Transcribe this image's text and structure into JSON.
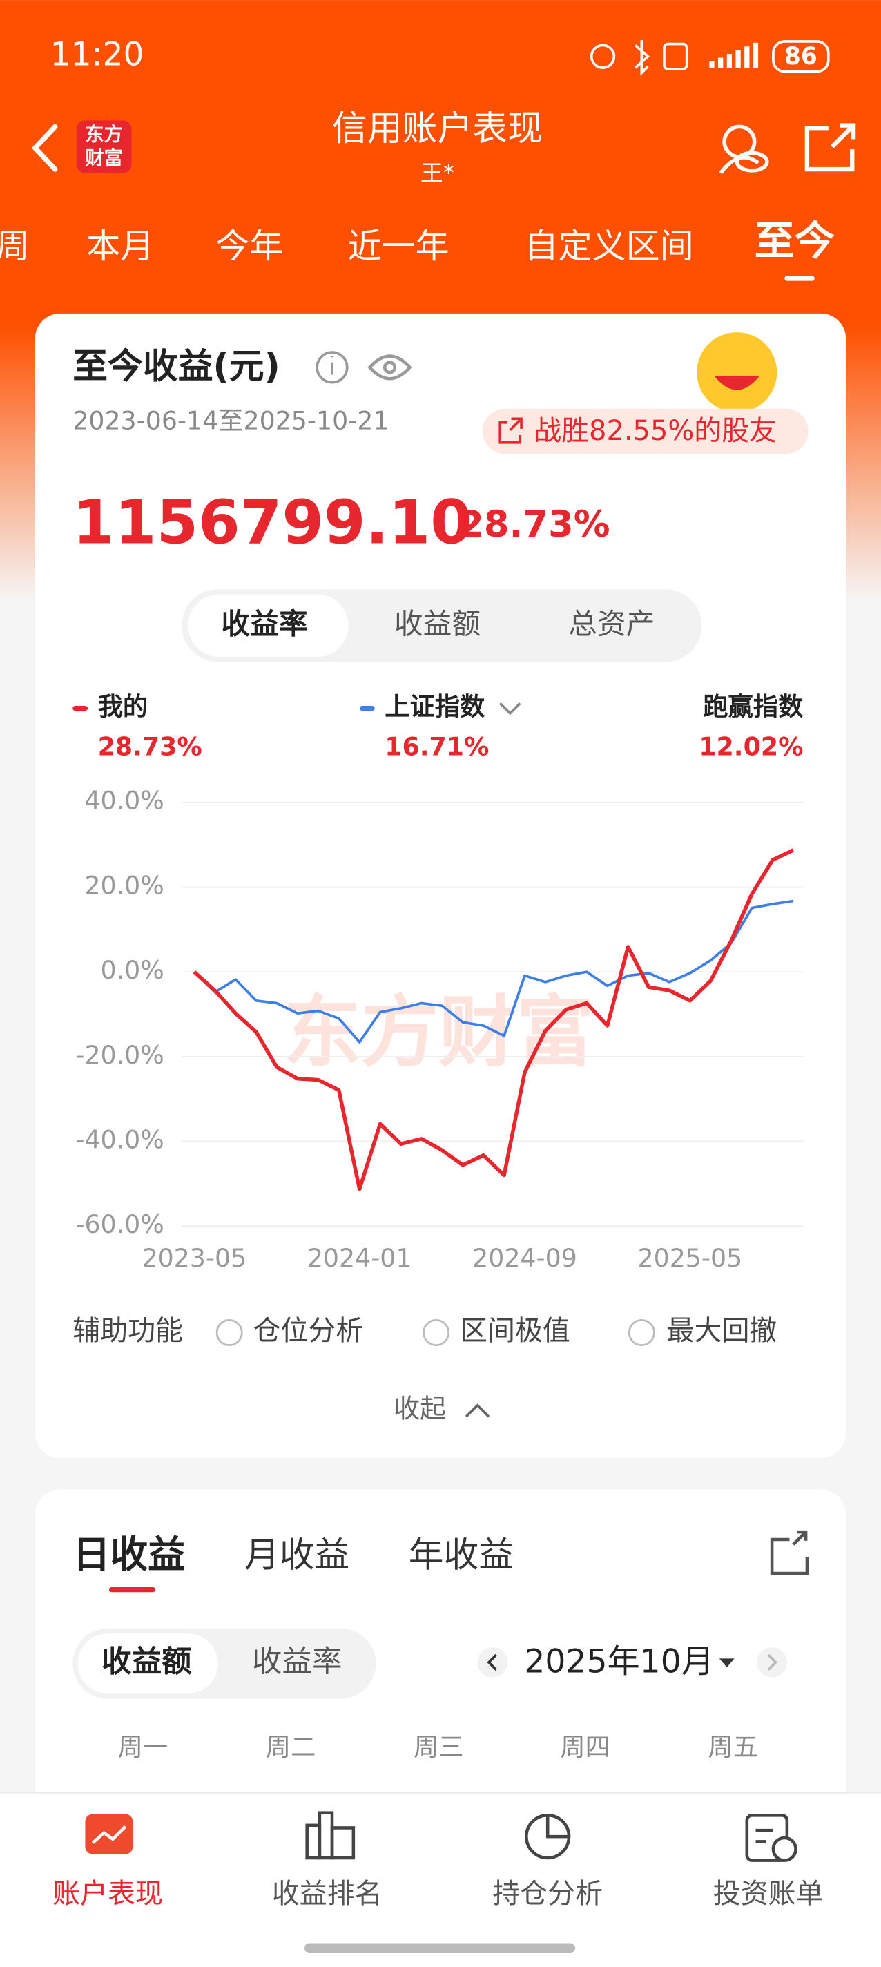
{
  "status_bar": {
    "time": "11:20",
    "battery": "86"
  },
  "header": {
    "logo": [
      "东方",
      "财富"
    ],
    "title": "信用账户表现",
    "subtitle": "王*"
  },
  "tabs": [
    "周",
    "本月",
    "今年",
    "近一年",
    "自定义区间",
    "至今"
  ],
  "summary": {
    "title": "至今收益(元)",
    "date_range": "2023-06-14至2025-10-21",
    "badge": "战胜82.55%的股友",
    "amount": "1156799.10",
    "rate": "28.73%"
  },
  "chart_modes": [
    "收益率",
    "收益额",
    "总资产"
  ],
  "chart_data": {
    "type": "line",
    "categories": [
      "2023-05",
      null,
      null,
      null,
      null,
      null,
      null,
      null,
      "2024-01",
      null,
      null,
      null,
      null,
      null,
      null,
      null,
      "2024-09",
      null,
      null,
      null,
      null,
      null,
      null,
      null,
      "2025-05",
      null,
      null,
      null,
      null,
      null
    ],
    "series": [
      {
        "name": "我的",
        "summary": "28.73%",
        "color": "#e8262d",
        "values": [
          0,
          -4.4,
          -9.8,
          -14.2,
          -22.5,
          -25.2,
          -25.5,
          -27.9,
          -51.3,
          -35.9,
          -40.6,
          -39.4,
          -42.1,
          -45.6,
          -43.3,
          -48.0,
          -23.7,
          -13.9,
          -8.9,
          -7.4,
          -12.7,
          5.9,
          -3.6,
          -4.4,
          -6.8,
          -2.1,
          7.4,
          18.4,
          26.4,
          28.73
        ]
      },
      {
        "name": "上证指数",
        "summary": "16.71%",
        "color": "#3d7ee8",
        "values": [
          0,
          -4.8,
          -1.8,
          -6.8,
          -7.4,
          -9.8,
          -9.2,
          -11.0,
          -16.6,
          -9.5,
          -8.6,
          -7.4,
          -8.0,
          -11.9,
          -12.7,
          -15.1,
          -0.9,
          -2.4,
          -0.9,
          0,
          -3.3,
          -0.9,
          -0.3,
          -2.4,
          -0.3,
          2.7,
          6.8,
          15.1,
          16.0,
          16.71
        ]
      }
    ],
    "outperform": {
      "label": "跑赢指数",
      "value": "12.02%"
    },
    "watermark": "东方财富",
    "ylim": [
      -60,
      40
    ],
    "yticks": [
      {
        "value": 40,
        "label": "40.0%"
      },
      {
        "value": 20,
        "label": "20.0%"
      },
      {
        "value": 0,
        "label": "0.0%"
      },
      {
        "value": -20,
        "label": "-20.0%"
      },
      {
        "value": -40,
        "label": "-40.0%"
      },
      {
        "value": -60,
        "label": "-60.0%"
      }
    ],
    "grid": true
  },
  "tools": {
    "label": "辅助功能",
    "options": [
      "仓位分析",
      "区间极值",
      "最大回撤"
    ],
    "collapse": "收起"
  },
  "daily": {
    "tabs": [
      "日收益",
      "月收益",
      "年收益"
    ],
    "modes": [
      "收益额",
      "收益率"
    ],
    "month": "2025年10月",
    "weekdays": [
      "周一",
      "周二",
      "周三",
      "周四",
      "周五"
    ]
  },
  "bottom_nav": [
    "账户表现",
    "收益排名",
    "持仓分析",
    "投资账单"
  ]
}
